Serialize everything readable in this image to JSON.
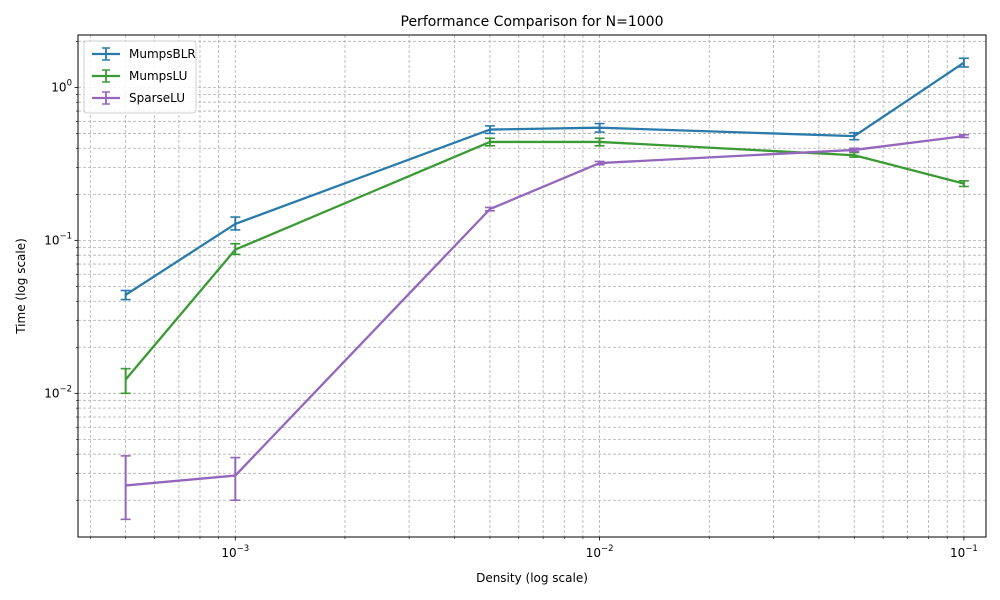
{
  "chart_data": {
    "type": "line",
    "title": "Performance Comparison for N=1000",
    "xlabel": "Density (log scale)",
    "ylabel": "Time (log scale)",
    "xscale": "log",
    "yscale": "log",
    "xlim": [
      0.00037,
      0.115
    ],
    "ylim": [
      0.00115,
      2.2
    ],
    "x_ticks": [
      {
        "value": 0.001,
        "base": "10",
        "exp": "−3"
      },
      {
        "value": 0.01,
        "base": "10",
        "exp": "−2"
      },
      {
        "value": 0.1,
        "base": "10",
        "exp": "−1"
      }
    ],
    "y_ticks": [
      {
        "value": 0.01,
        "base": "10",
        "exp": "−2"
      },
      {
        "value": 0.1,
        "base": "10",
        "exp": "−1"
      },
      {
        "value": 1,
        "base": "10",
        "exp": "0"
      }
    ],
    "grid": true,
    "legend_position": "top-left",
    "x": [
      0.0005,
      0.001,
      0.005,
      0.01,
      0.05,
      0.1
    ],
    "series": [
      {
        "name": "MumpsBLR",
        "color": "#2a7bab",
        "values": [
          0.044,
          0.128,
          0.53,
          0.545,
          0.48,
          1.45
        ],
        "err_low": [
          0.041,
          0.117,
          0.5,
          0.51,
          0.455,
          1.36
        ],
        "err_high": [
          0.047,
          0.142,
          0.56,
          0.58,
          0.505,
          1.55
        ]
      },
      {
        "name": "MumpsLU",
        "color": "#3a9a33",
        "values": [
          0.0123,
          0.087,
          0.44,
          0.44,
          0.36,
          0.235
        ],
        "err_low": [
          0.01,
          0.081,
          0.415,
          0.415,
          0.35,
          0.225
        ],
        "err_high": [
          0.0145,
          0.095,
          0.465,
          0.465,
          0.375,
          0.245
        ]
      },
      {
        "name": "SparseLU",
        "color": "#9467bd",
        "values": [
          0.0025,
          0.0029,
          0.16,
          0.32,
          0.39,
          0.48
        ],
        "err_low": [
          0.0015,
          0.002,
          0.156,
          0.312,
          0.38,
          0.47
        ],
        "err_high": [
          0.0039,
          0.0038,
          0.164,
          0.328,
          0.4,
          0.49
        ]
      }
    ]
  }
}
